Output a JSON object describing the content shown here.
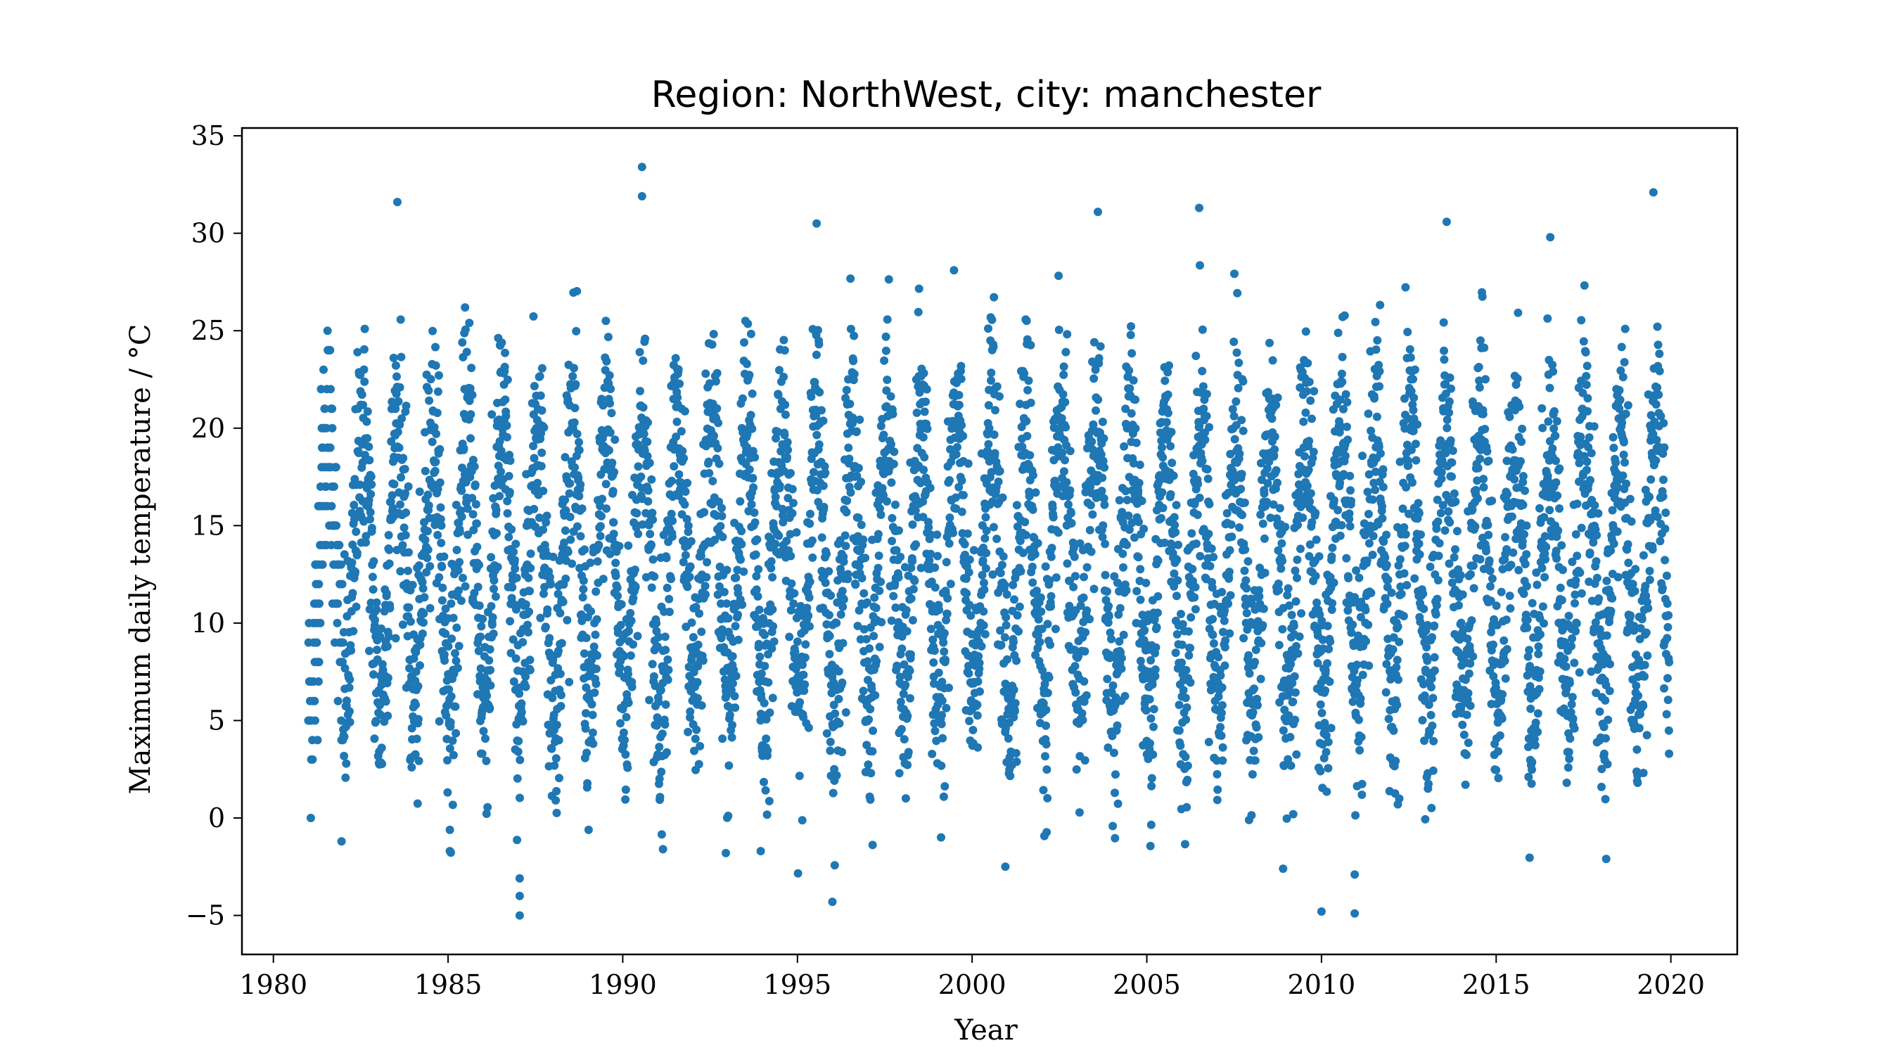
{
  "chart_data": {
    "type": "scatter",
    "title": "Region: NorthWest, city: manchester",
    "xlabel": "Year",
    "ylabel": "Maximum daily temperature / °C",
    "xlim": [
      1979.1,
      2021.9
    ],
    "ylim": [
      -7.0,
      35.4
    ],
    "xticks": [
      1980,
      1985,
      1990,
      1995,
      2000,
      2005,
      2010,
      2015,
      2020
    ],
    "xtick_labels": [
      "1980",
      "1985",
      "1990",
      "1995",
      "2000",
      "2005",
      "2010",
      "2015",
      "2020"
    ],
    "yticks": [
      -5,
      0,
      5,
      10,
      15,
      20,
      25,
      30,
      35
    ],
    "ytick_labels": [
      "−5",
      "0",
      "5",
      "10",
      "15",
      "20",
      "25",
      "30",
      "35"
    ],
    "grid": false,
    "legend": false,
    "marker_color": "#1f77b4",
    "series": [
      {
        "x_range": [
          1981.0,
          2019.95
        ],
        "seasonal_mean": 13.0,
        "seasonal_amplitude": 7.0,
        "noise_sd": 3.0,
        "points_per_year": 140
      }
    ],
    "notable_points": [
      {
        "x": 1990.55,
        "y": 33.4
      },
      {
        "x": 1990.55,
        "y": 31.9
      },
      {
        "x": 2019.5,
        "y": 32.1
      },
      {
        "x": 1983.55,
        "y": 31.6
      },
      {
        "x": 2006.5,
        "y": 31.3
      },
      {
        "x": 2003.6,
        "y": 31.1
      },
      {
        "x": 1995.55,
        "y": 30.5
      },
      {
        "x": 2016.55,
        "y": 29.8
      },
      {
        "x": 1987.05,
        "y": -5.0
      },
      {
        "x": 1987.05,
        "y": -3.1
      },
      {
        "x": 1987.05,
        "y": -4.0
      },
      {
        "x": 2010.0,
        "y": -4.8
      },
      {
        "x": 2010.95,
        "y": -4.9
      },
      {
        "x": 2010.95,
        "y": -2.9
      },
      {
        "x": 1996.0,
        "y": -4.3
      },
      {
        "x": 2000.95,
        "y": -2.5
      },
      {
        "x": 2008.9,
        "y": -2.6
      },
      {
        "x": 2018.15,
        "y": -2.1
      },
      {
        "x": 1981.95,
        "y": -1.2
      },
      {
        "x": 1985.05,
        "y": -1.7
      },
      {
        "x": 1991.15,
        "y": -1.6
      },
      {
        "x": 1992.95,
        "y": -1.8
      },
      {
        "x": 1993.95,
        "y": -1.7
      },
      {
        "x": 2019.95,
        "y": 3.3
      }
    ]
  }
}
